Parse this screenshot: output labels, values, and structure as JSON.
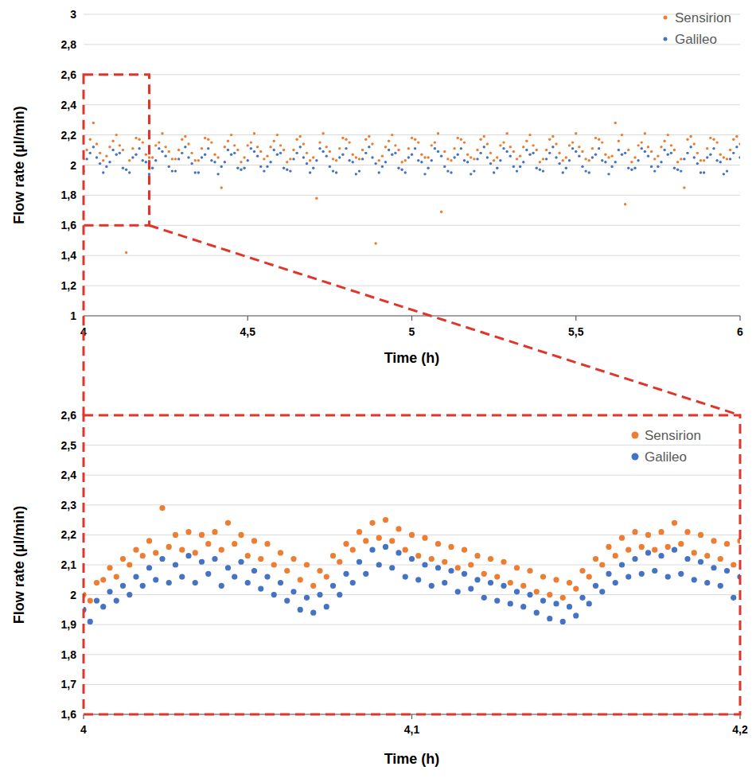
{
  "chart_data": [
    {
      "type": "scatter",
      "x_label": "Time (h)",
      "y_label": "Flow rate (µl/min)",
      "xlim": [
        4,
        6
      ],
      "ylim": [
        1,
        3
      ],
      "xticks": [
        4,
        {
          "value": 4.5,
          "label": "4,5"
        },
        5,
        {
          "value": 5.5,
          "label": "5,5"
        },
        6
      ],
      "yticks": [
        1,
        {
          "value": 1.2,
          "label": "1,2"
        },
        {
          "value": 1.4,
          "label": "1,4"
        },
        {
          "value": 1.6,
          "label": "1,6"
        },
        {
          "value": 1.8,
          "label": "1,8"
        },
        2,
        {
          "value": 2.2,
          "label": "2,2"
        },
        {
          "value": 2.4,
          "label": "2,4"
        },
        {
          "value": 2.6,
          "label": "2,6"
        },
        {
          "value": 2.8,
          "label": "2,8"
        },
        3
      ],
      "grid": true,
      "legend": "top-right",
      "marker": "circle",
      "x": [
        4,
        4.01,
        4.02,
        4.03,
        4.04,
        4.05,
        4.06,
        4.07,
        4.08,
        4.09,
        4.1,
        4.11,
        4.12,
        4.13,
        4.14,
        4.15,
        4.16,
        4.17,
        4.18,
        4.19,
        4.2,
        4.21,
        4.22,
        4.23,
        4.24,
        4.25,
        4.26,
        4.27,
        4.28,
        4.29,
        4.3,
        4.31,
        4.32,
        4.33,
        4.34,
        4.35,
        4.36,
        4.37,
        4.38,
        4.39,
        4.4,
        4.41,
        4.42,
        4.43,
        4.44,
        4.45,
        4.46,
        4.47,
        4.48,
        4.49,
        4.5,
        4.51,
        4.52,
        4.53,
        4.54,
        4.55,
        4.56,
        4.57,
        4.58,
        4.59,
        4.6,
        4.61,
        4.62,
        4.63,
        4.64,
        4.65,
        4.66,
        4.67,
        4.68,
        4.69,
        4.7,
        4.71,
        4.72,
        4.73,
        4.74,
        4.75,
        4.76,
        4.77,
        4.78,
        4.79,
        4.8,
        4.81,
        4.82,
        4.83,
        4.84,
        4.85,
        4.86,
        4.87,
        4.88,
        4.89,
        4.9,
        4.91,
        4.92,
        4.93,
        4.94,
        4.95,
        4.96,
        4.97,
        4.98,
        4.99,
        5,
        5.01,
        5.02,
        5.03,
        5.04,
        5.05,
        5.06,
        5.07,
        5.08,
        5.09,
        5.1,
        5.11,
        5.12,
        5.13,
        5.14,
        5.15,
        5.16,
        5.17,
        5.18,
        5.19,
        5.2,
        5.21,
        5.22,
        5.23,
        5.24,
        5.25,
        5.26,
        5.27,
        5.28,
        5.29,
        5.3,
        5.31,
        5.32,
        5.33,
        5.34,
        5.35,
        5.36,
        5.37,
        5.38,
        5.39,
        5.4,
        5.41,
        5.42,
        5.43,
        5.44,
        5.45,
        5.46,
        5.47,
        5.48,
        5.49,
        5.5,
        5.51,
        5.52,
        5.53,
        5.54,
        5.55,
        5.56,
        5.57,
        5.58,
        5.59,
        5.6,
        5.61,
        5.62,
        5.63,
        5.64,
        5.65,
        5.66,
        5.67,
        5.68,
        5.69,
        5.7,
        5.71,
        5.72,
        5.73,
        5.74,
        5.75,
        5.76,
        5.77,
        5.78,
        5.79,
        5.8,
        5.81,
        5.82,
        5.83,
        5.84,
        5.85,
        5.86,
        5.87,
        5.88,
        5.89,
        5.9,
        5.91,
        5.92,
        5.93,
        5.94,
        5.95,
        5.96,
        5.97,
        5.98,
        5.99,
        6
      ],
      "series": [
        {
          "name": "Sensirion",
          "color": "#ED7D31",
          "values": [
            2.04,
            2.1,
            2.17,
            2.28,
            2.14,
            2.08,
            2.03,
            2.06,
            2.12,
            2.16,
            2.2,
            2.13,
            2.1,
            1.42,
            2.03,
            2.11,
            2.18,
            2.17,
            2.15,
            2.07,
            2.05,
            2.05,
            2.13,
            2.15,
            2.21,
            2.12,
            2.09,
            2.04,
            2.04,
            2.1,
            2.17,
            2.19,
            2.14,
            2.08,
            2.03,
            2.03,
            2.11,
            2.18,
            2.17,
            2.15,
            2.07,
            2.05,
            1.85,
            2.12,
            2.16,
            2.2,
            2.13,
            2.1,
            2.02,
            2.05,
            2.13,
            2.15,
            2.21,
            2.12,
            2.09,
            2.04,
            2.06,
            2.12,
            2.16,
            2.2,
            2.13,
            2.1,
            2.02,
            2.04,
            2.1,
            2.17,
            2.19,
            2.14,
            2.08,
            2.03,
            2.05,
            1.78,
            2.15,
            2.21,
            2.12,
            2.09,
            2.04,
            2.03,
            2.11,
            2.18,
            2.17,
            2.15,
            2.07,
            2.05,
            2.04,
            2.1,
            2.17,
            2.19,
            2.14,
            1.48,
            2.03,
            2.06,
            2.12,
            2.16,
            2.2,
            2.13,
            2.1,
            2.02,
            2.03,
            2.11,
            2.18,
            2.17,
            2.15,
            2.07,
            2.05,
            2.05,
            2.13,
            2.15,
            2.21,
            1.69,
            2.09,
            2.04,
            2.03,
            2.11,
            2.18,
            2.17,
            2.15,
            2.07,
            2.05,
            2.04,
            2.1,
            2.17,
            2.19,
            2.14,
            2.08,
            2.03,
            2.05,
            2.13,
            2.15,
            2.21,
            2.12,
            2.09,
            2.04,
            2.06,
            2.12,
            2.16,
            2.2,
            2.13,
            2.1,
            2.02,
            2.04,
            2.1,
            2.17,
            2.19,
            2.14,
            2.08,
            2.03,
            2.05,
            2.13,
            2.15,
            2.21,
            2.12,
            2.09,
            2.04,
            2.03,
            2.11,
            2.18,
            2.17,
            2.15,
            2.07,
            2.05,
            2.06,
            2.28,
            2.16,
            2.2,
            1.74,
            2.1,
            2.02,
            2.05,
            2.13,
            2.15,
            2.21,
            2.12,
            2.09,
            2.04,
            2.06,
            2.12,
            2.16,
            2.2,
            2.13,
            2.1,
            2.02,
            2.04,
            1.85,
            2.17,
            2.19,
            2.14,
            2.08,
            2.03,
            2.03,
            2.11,
            2.18,
            2.17,
            2.15,
            2.07,
            2.05,
            2.04,
            2.1,
            2.17,
            2.19,
            2.14
          ]
        },
        {
          "name": "Galileo",
          "color": "#4472C4",
          "values": [
            1.96,
            2.04,
            2.08,
            2.12,
            2.05,
            2.01,
            1.95,
            1.99,
            2.02,
            2.1,
            2.07,
            2.08,
            1.98,
            1.97,
            1.95,
            2.05,
            2.07,
            2.11,
            2.03,
            2.02,
            1.94,
            1.98,
            2.03,
            2.11,
            2.09,
            2.06,
            1.99,
            1.96,
            1.96,
            2.04,
            2.08,
            2.12,
            2.05,
            2.01,
            1.95,
            1.95,
            2.05,
            2.07,
            2.11,
            2.03,
            2.02,
            1.94,
            1.99,
            2.02,
            2.1,
            2.07,
            2.08,
            1.98,
            1.97,
            1.98,
            2.03,
            2.11,
            2.09,
            2.06,
            1.99,
            1.96,
            1.99,
            2.02,
            2.1,
            2.07,
            2.08,
            1.98,
            1.97,
            1.96,
            2.04,
            2.08,
            2.12,
            2.05,
            2.01,
            1.95,
            1.98,
            2.03,
            2.11,
            2.09,
            2.06,
            1.99,
            1.96,
            1.95,
            2.05,
            2.07,
            2.11,
            2.03,
            2.02,
            1.94,
            1.96,
            2.04,
            2.08,
            2.12,
            2.05,
            2.01,
            1.95,
            1.99,
            2.02,
            2.1,
            2.07,
            2.08,
            1.98,
            1.97,
            1.95,
            2.05,
            2.07,
            2.11,
            2.03,
            2.02,
            1.94,
            1.98,
            2.03,
            2.11,
            2.09,
            2.06,
            1.99,
            1.96,
            1.95,
            2.05,
            2.07,
            2.11,
            2.03,
            2.02,
            1.94,
            1.96,
            2.04,
            2.08,
            2.12,
            2.05,
            2.01,
            1.95,
            1.98,
            2.03,
            2.11,
            2.09,
            2.06,
            1.99,
            1.96,
            1.99,
            2.02,
            2.1,
            2.07,
            2.08,
            1.98,
            1.97,
            1.96,
            2.04,
            2.08,
            2.12,
            2.05,
            2.01,
            1.95,
            1.98,
            2.03,
            2.11,
            2.09,
            2.06,
            1.99,
            1.96,
            1.95,
            2.05,
            2.07,
            2.11,
            2.03,
            2.02,
            1.94,
            1.99,
            2.02,
            2.1,
            2.07,
            2.08,
            1.98,
            1.97,
            1.98,
            2.03,
            2.11,
            2.09,
            2.06,
            1.99,
            1.96,
            1.99,
            2.02,
            2.1,
            2.07,
            2.08,
            1.98,
            1.97,
            1.96,
            2.04,
            2.08,
            2.12,
            2.05,
            2.01,
            1.95,
            1.95,
            2.05,
            2.07,
            2.11,
            2.03,
            2.02,
            1.94,
            1.96,
            2.04,
            2.08,
            2.12,
            2.05
          ]
        }
      ]
    },
    {
      "type": "scatter",
      "x_label": "Time (h)",
      "y_label": "Flow rate (µl/min)",
      "xlim": [
        4,
        4.2
      ],
      "ylim": [
        1.6,
        2.6
      ],
      "xticks": [
        4,
        {
          "value": 4.1,
          "label": "4,1"
        },
        {
          "value": 4.2,
          "label": "4,2"
        }
      ],
      "yticks": [
        {
          "value": 1.6,
          "label": "1,6"
        },
        {
          "value": 1.7,
          "label": "1,7"
        },
        {
          "value": 1.8,
          "label": "1,8"
        },
        {
          "value": 1.9,
          "label": "1,9"
        },
        2,
        {
          "value": 2.1,
          "label": "2,1"
        },
        {
          "value": 2.2,
          "label": "2,2"
        },
        {
          "value": 2.3,
          "label": "2,3"
        },
        {
          "value": 2.4,
          "label": "2,4"
        },
        {
          "value": 2.5,
          "label": "2,5"
        },
        {
          "value": 2.6,
          "label": "2,6"
        }
      ],
      "grid": true,
      "legend": "top-right",
      "marker": "circle",
      "x": [
        4,
        4.002,
        4.004,
        4.006,
        4.008,
        4.01,
        4.012,
        4.014,
        4.016,
        4.018,
        4.02,
        4.022,
        4.024,
        4.026,
        4.028,
        4.03,
        4.032,
        4.034,
        4.036,
        4.038,
        4.04,
        4.042,
        4.044,
        4.046,
        4.048,
        4.05,
        4.052,
        4.054,
        4.056,
        4.058,
        4.06,
        4.062,
        4.064,
        4.066,
        4.068,
        4.07,
        4.072,
        4.074,
        4.076,
        4.078,
        4.08,
        4.082,
        4.084,
        4.086,
        4.088,
        4.09,
        4.092,
        4.094,
        4.096,
        4.098,
        4.1,
        4.102,
        4.104,
        4.106,
        4.108,
        4.11,
        4.112,
        4.114,
        4.116,
        4.118,
        4.12,
        4.122,
        4.124,
        4.126,
        4.128,
        4.13,
        4.132,
        4.134,
        4.136,
        4.138,
        4.14,
        4.142,
        4.144,
        4.146,
        4.148,
        4.15,
        4.152,
        4.154,
        4.156,
        4.158,
        4.16,
        4.162,
        4.164,
        4.166,
        4.168,
        4.17,
        4.172,
        4.174,
        4.176,
        4.178,
        4.18,
        4.182,
        4.184,
        4.186,
        4.188,
        4.19,
        4.192,
        4.194,
        4.196,
        4.198,
        4.2
      ],
      "series": [
        {
          "name": "Sensirion",
          "color": "#ED7D31",
          "values": [
            2.0,
            1.98,
            2.04,
            2.05,
            2.09,
            2.06,
            2.12,
            2.1,
            2.15,
            2.13,
            2.18,
            2.14,
            2.29,
            2.16,
            2.2,
            2.15,
            2.21,
            2.14,
            2.2,
            2.17,
            2.21,
            2.15,
            2.24,
            2.17,
            2.2,
            2.13,
            2.18,
            2.12,
            2.17,
            2.1,
            2.14,
            2.08,
            2.12,
            2.05,
            2.1,
            2.03,
            2.08,
            2.06,
            2.13,
            2.11,
            2.17,
            2.15,
            2.21,
            2.18,
            2.24,
            2.19,
            2.25,
            2.18,
            2.22,
            2.15,
            2.2,
            2.13,
            2.19,
            2.12,
            2.17,
            2.11,
            2.16,
            2.09,
            2.15,
            2.1,
            2.13,
            2.07,
            2.12,
            2.06,
            2.11,
            2.04,
            2.09,
            2.03,
            2.08,
            2.01,
            2.06,
            2.0,
            2.05,
            1.99,
            2.04,
            2.02,
            2.08,
            2.06,
            2.12,
            2.1,
            2.16,
            2.13,
            2.19,
            2.15,
            2.21,
            2.16,
            2.2,
            2.15,
            2.21,
            2.16,
            2.24,
            2.17,
            2.21,
            2.14,
            2.2,
            2.13,
            2.18,
            2.12,
            2.17,
            2.1,
            2.18
          ]
        },
        {
          "name": "Galileo",
          "color": "#4472C4",
          "values": [
            1.95,
            1.91,
            1.98,
            1.96,
            2.01,
            1.98,
            2.03,
            2.0,
            2.06,
            2.03,
            2.09,
            2.05,
            2.12,
            2.04,
            2.1,
            2.06,
            2.13,
            2.04,
            2.11,
            2.07,
            2.12,
            2.03,
            2.09,
            2.06,
            2.11,
            2.04,
            2.08,
            2.02,
            2.06,
            2.0,
            2.04,
            1.98,
            2.01,
            1.95,
            1.99,
            1.94,
            2.0,
            1.96,
            2.03,
            2.0,
            2.07,
            2.04,
            2.11,
            2.07,
            2.15,
            2.1,
            2.16,
            2.09,
            2.14,
            2.06,
            2.12,
            2.05,
            2.1,
            2.03,
            2.09,
            2.04,
            2.08,
            2.01,
            2.07,
            2.02,
            2.05,
            1.99,
            2.04,
            1.98,
            2.03,
            1.97,
            2.01,
            1.96,
            2.0,
            1.94,
            1.98,
            1.92,
            1.97,
            1.91,
            1.96,
            1.93,
            1.99,
            1.97,
            2.03,
            2.01,
            2.07,
            2.04,
            2.1,
            2.06,
            2.12,
            2.07,
            2.14,
            2.08,
            2.13,
            2.06,
            2.15,
            2.07,
            2.12,
            2.05,
            2.11,
            2.04,
            2.09,
            2.03,
            2.08,
            1.99,
            2.06
          ]
        }
      ]
    }
  ]
}
